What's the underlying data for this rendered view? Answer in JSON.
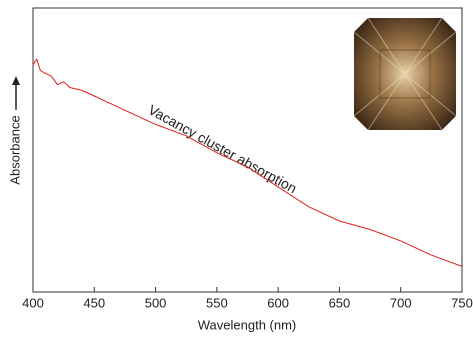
{
  "chart_data": {
    "type": "line",
    "xlabel": "Wavelength (nm)",
    "ylabel": "Absorbance",
    "annotation": "Vacancy cluster absorption",
    "x": [
      400,
      403,
      406,
      410,
      415,
      420,
      425,
      430,
      440,
      450,
      460,
      475,
      490,
      500,
      525,
      550,
      575,
      600,
      625,
      650,
      675,
      700,
      725,
      750
    ],
    "values": [
      80,
      82,
      78,
      77,
      76,
      73,
      74,
      72,
      71,
      69,
      67,
      64,
      61,
      59,
      55,
      49,
      44,
      37,
      30,
      25,
      22,
      18,
      13,
      9
    ],
    "color": "#e02020",
    "xlim": [
      400,
      750
    ],
    "xticks": [
      400,
      450,
      500,
      550,
      600,
      650,
      700,
      750
    ],
    "ylim": [
      0,
      100
    ]
  }
}
